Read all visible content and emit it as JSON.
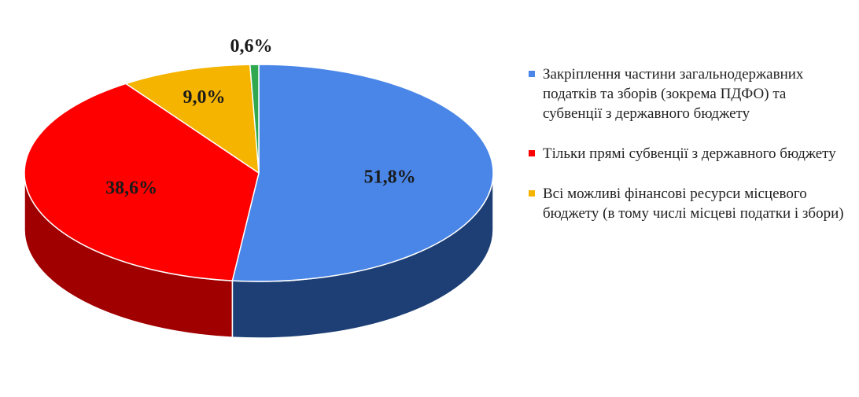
{
  "chart_data": {
    "type": "pie",
    "style": "3d",
    "slices": [
      {
        "label": "Закріплення частини загальнодержавних податків та зборів (зокрема ПДФО) та субвенції з державного бюджету",
        "value": 51.8,
        "value_label": "51,8%",
        "color": "#4a86e8",
        "side_color": "#1d3f75",
        "in_legend": true
      },
      {
        "label": "Тільки прямі субвенції з державного бюджету",
        "value": 38.6,
        "value_label": "38,6%",
        "color": "#ff0000",
        "side_color": "#a00000",
        "in_legend": true
      },
      {
        "label": "Всі можливі фінансові ресурси місцевого бюджету (в тому числі місцеві податки і збори)",
        "value": 9.0,
        "value_label": "9,0%",
        "color": "#f5b400",
        "side_color": "#9c7300",
        "in_legend": true
      },
      {
        "label": "",
        "value": 0.6,
        "value_label": "0,6%",
        "color": "#2fa84f",
        "side_color": "#1b6a31",
        "in_legend": false
      }
    ],
    "legend_position": "right"
  }
}
